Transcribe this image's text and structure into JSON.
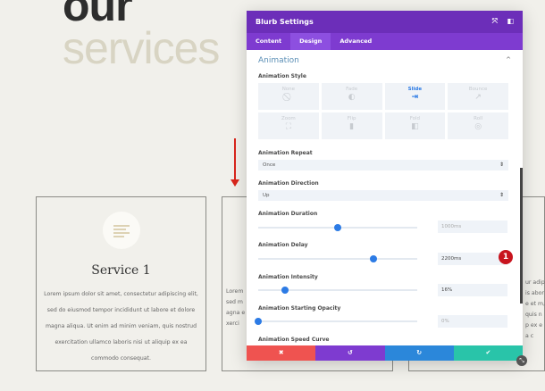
{
  "hero": {
    "word1": "our",
    "word2": "services"
  },
  "cards": [
    {
      "title": "Service 1",
      "text": "Lorem ipsum dolor sit amet, consectetur adipiscing elit, sed do eiusmod tempor incididunt ut labore et dolore magna aliqua. Ut enim ad minim veniam, quis nostrud exercitation ullamco laboris nisi ut aliquip ex ea commodo consequat."
    },
    {
      "text": "Lorem sed magna exerci"
    },
    {
      "text": "ur adipis abore et m, quis n p ex ea c"
    }
  ],
  "panel": {
    "title": "Blurb Settings",
    "tabs": [
      "Content",
      "Design",
      "Advanced"
    ],
    "active_tab": "Design",
    "section": "Animation",
    "style_label": "Animation Style",
    "styles": [
      {
        "label": "None",
        "icon": "⃠"
      },
      {
        "label": "Fade",
        "icon": "◐"
      },
      {
        "label": "Slide",
        "icon": "⇥"
      },
      {
        "label": "Bounce",
        "icon": "↗"
      },
      {
        "label": "Zoom",
        "icon": "⛶"
      },
      {
        "label": "Flip",
        "icon": "▮"
      },
      {
        "label": "Fold",
        "icon": "◧"
      },
      {
        "label": "Roll",
        "icon": "◎"
      }
    ],
    "selected_style": "Slide",
    "repeat": {
      "label": "Animation Repeat",
      "value": "Once"
    },
    "direction": {
      "label": "Animation Direction",
      "value": "Up"
    },
    "duration": {
      "label": "Animation Duration",
      "value": "1000ms",
      "fraction": 0.5
    },
    "delay": {
      "label": "Animation Delay",
      "value": "2200ms",
      "fraction": 0.725
    },
    "intensity": {
      "label": "Animation Intensity",
      "value": "16%",
      "fraction": 0.17
    },
    "opacity": {
      "label": "Animation Starting Opacity",
      "value": "0%",
      "fraction": 0
    },
    "speed_curve": {
      "label": "Animation Speed Curve"
    },
    "footer_colors": {
      "cancel": "#ef5350",
      "undo": "#7e3bd0",
      "redo": "#2b87da",
      "save": "#29c4a9"
    }
  },
  "badge": "1",
  "accent": "#2c7be5"
}
